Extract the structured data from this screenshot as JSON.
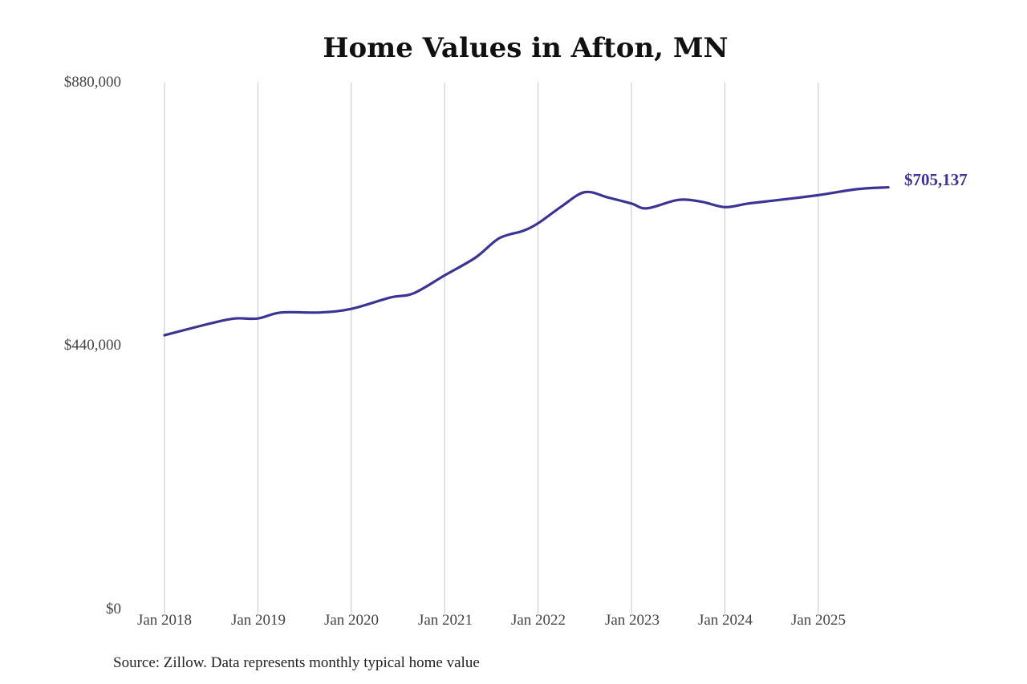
{
  "chart_data": {
    "type": "line",
    "title": "Home Values in Afton, MN",
    "xlabel": "",
    "ylabel": "",
    "ylim": [
      0,
      880000
    ],
    "y_ticks": [
      "$880,000",
      "$440,000",
      "$0"
    ],
    "x_ticks": [
      "Jan 2018",
      "Jan 2019",
      "Jan 2020",
      "Jan 2021",
      "Jan 2022",
      "Jan 2023",
      "Jan 2024",
      "Jan 2025"
    ],
    "grid": "vertical",
    "line_color": "#3b3494",
    "series": [
      {
        "name": "Typical home value",
        "x": [
          "2018-01",
          "2018-07",
          "2018-10",
          "2019-01",
          "2019-04",
          "2019-09",
          "2020-01",
          "2020-06",
          "2020-09",
          "2021-01",
          "2021-05",
          "2021-08",
          "2021-11",
          "2022-01",
          "2022-04",
          "2022-07",
          "2022-10",
          "2023-01",
          "2023-03",
          "2023-07",
          "2023-10",
          "2024-01",
          "2024-04",
          "2024-08",
          "2025-01",
          "2025-06",
          "2025-10"
        ],
        "values": [
          458000,
          478000,
          486000,
          486000,
          496000,
          496000,
          502000,
          521000,
          528000,
          558000,
          588000,
          620000,
          632000,
          645000,
          673000,
          697000,
          688000,
          678000,
          670000,
          684000,
          681000,
          672000,
          678000,
          684000,
          692000,
          702000,
          705137
        ]
      }
    ],
    "end_label": "$705,137",
    "source": "Source: Zillow. Data represents monthly typical home value"
  }
}
